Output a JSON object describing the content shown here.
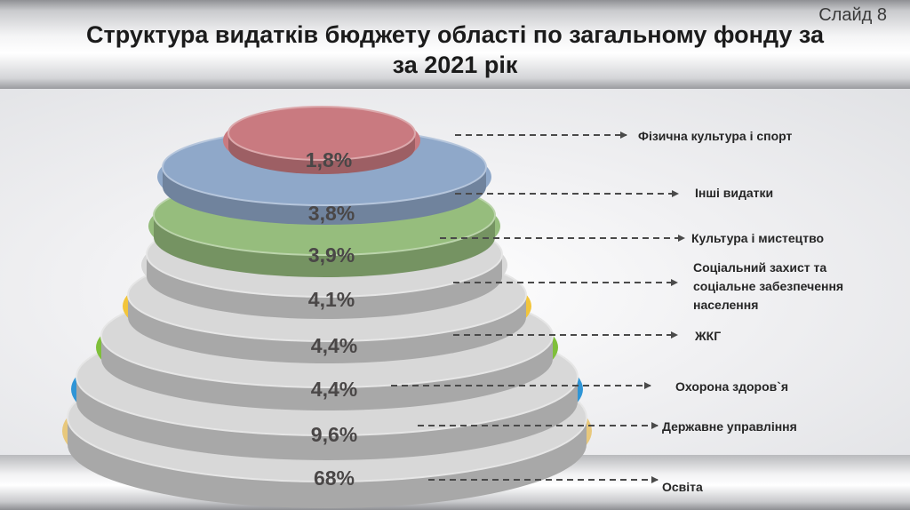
{
  "slide_label": "Слайд 8",
  "title_line1": "Структура видатків бюджету області по загальному фонду за",
  "title_line2": "за 2021 рік",
  "chart_data": {
    "type": "pie",
    "title": "Структура видатків бюджету області по загальному фонду за за 2021 рік",
    "unit": "%",
    "categories": [
      "Фізична культура і спорт",
      "Інші видатки",
      "Культура і мистецтво",
      "Соціальний захист та соціальне забезпечення населення",
      "ЖКГ",
      "Охорона здоров`я",
      "Державне управління",
      "Освіта"
    ],
    "values": [
      1.8,
      3.8,
      3.9,
      4.1,
      4.4,
      4.4,
      9.6,
      68
    ],
    "value_labels": [
      "1,8%",
      "3,8%",
      "3,9%",
      "4,1%",
      "4,4%",
      "4,4%",
      "9,6%",
      "68%"
    ],
    "label_lines": [
      [
        "Фізична культура і спорт"
      ],
      [
        "Інші видатки"
      ],
      [
        "Культура і мистецтво"
      ],
      [
        "Соціальний захист та",
        "соціальне забезпечення",
        "населення"
      ],
      [
        "ЖКГ"
      ],
      [
        "Охорона здоров`я"
      ],
      [
        "Державне управління"
      ],
      [
        "Освіта"
      ]
    ],
    "colors": [
      "#c97a80",
      "#8fa8c9",
      "#96bd7d",
      "#d8d8d8",
      "#d8d8d8",
      "#d8d8d8",
      "#d8d8d8",
      "#d8d8d8"
    ],
    "rim_colors": [
      "#c97a80",
      "#8fa8c9",
      "#96bd7d",
      "#d8d8d8",
      "#f2c53b",
      "#7fbf3a",
      "#2f95d6",
      "#e8c87c"
    ],
    "highlight_color": "#1f3f7a",
    "legend": "right"
  }
}
